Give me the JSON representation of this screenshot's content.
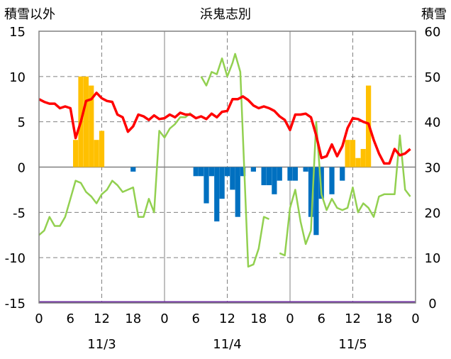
{
  "chart_data": {
    "type": "bar+line",
    "title": "浜鬼志別",
    "left_axis_title": "積雪以外",
    "right_axis_title": "積雪",
    "left_ylim": [
      -15,
      15
    ],
    "left_yticks": [
      15,
      10,
      5,
      0,
      -5,
      -10,
      -15
    ],
    "right_ylim": [
      0,
      60
    ],
    "right_yticks": [
      60,
      50,
      40,
      30,
      20,
      10,
      0
    ],
    "x_range_hours": [
      0,
      72
    ],
    "x_tick_labels": [
      "0",
      "6",
      "12",
      "18",
      "0",
      "6",
      "12",
      "18",
      "0",
      "6",
      "12",
      "18",
      "0"
    ],
    "date_labels": [
      "11/3",
      "11/4",
      "11/5"
    ],
    "grid": true,
    "colors": {
      "temperature": "#ff0000",
      "snow_depth": "#92d050",
      "snowfall": "#ffc000",
      "precipitation": "#0070c0",
      "baseline": "#7030a0"
    },
    "snowfall_bars": [
      [
        7,
        3
      ],
      [
        8,
        10
      ],
      [
        9,
        10
      ],
      [
        10,
        9
      ],
      [
        11,
        3
      ],
      [
        12,
        4
      ],
      [
        59,
        3
      ],
      [
        60,
        3
      ],
      [
        61,
        1
      ],
      [
        62,
        2
      ],
      [
        63,
        9
      ]
    ],
    "precip_bars": [
      [
        18,
        -0.5
      ],
      [
        30,
        -1
      ],
      [
        31,
        -1
      ],
      [
        32,
        -4
      ],
      [
        33,
        -1
      ],
      [
        34,
        -6
      ],
      [
        35,
        -3.5
      ],
      [
        36,
        -1
      ],
      [
        37,
        -2.5
      ],
      [
        38,
        -5.5
      ],
      [
        39,
        -1
      ],
      [
        41,
        -0.5
      ],
      [
        43,
        -2
      ],
      [
        44,
        -2
      ],
      [
        45,
        -3
      ],
      [
        46,
        -1.5
      ],
      [
        48,
        -1.5
      ],
      [
        49,
        -1.5
      ],
      [
        51,
        -0.5
      ],
      [
        52,
        -5.5
      ],
      [
        53,
        -7.5
      ],
      [
        54,
        -3.5
      ],
      [
        56,
        -3
      ],
      [
        58,
        -1.5
      ]
    ],
    "temperature": [
      [
        0,
        7.5
      ],
      [
        1,
        7.2
      ],
      [
        2,
        7
      ],
      [
        3,
        7
      ],
      [
        4,
        6.5
      ],
      [
        5,
        6.7
      ],
      [
        6,
        6.5
      ],
      [
        7,
        3.2
      ],
      [
        8,
        5
      ],
      [
        9,
        7.3
      ],
      [
        10,
        7.5
      ],
      [
        11,
        8.2
      ],
      [
        12,
        7.6
      ],
      [
        13,
        7.3
      ],
      [
        14,
        7.2
      ],
      [
        15,
        5.8
      ],
      [
        16,
        5.5
      ],
      [
        17,
        3.9
      ],
      [
        18,
        4.5
      ],
      [
        19,
        5.8
      ],
      [
        20,
        5.6
      ],
      [
        21,
        5.2
      ],
      [
        22,
        5.7
      ],
      [
        23,
        5.3
      ],
      [
        24,
        5.4
      ],
      [
        25,
        5.8
      ],
      [
        26,
        5.5
      ],
      [
        27,
        6
      ],
      [
        28,
        5.8
      ],
      [
        29,
        5.8
      ],
      [
        30,
        5.4
      ],
      [
        31,
        5.6
      ],
      [
        32,
        5.3
      ],
      [
        33,
        5.9
      ],
      [
        34,
        5.5
      ],
      [
        35,
        6.1
      ],
      [
        36,
        6.2
      ],
      [
        37,
        7.5
      ],
      [
        38,
        7.5
      ],
      [
        39,
        7.8
      ],
      [
        40,
        7.4
      ],
      [
        41,
        6.8
      ],
      [
        42,
        6.5
      ],
      [
        43,
        6.7
      ],
      [
        44,
        6.5
      ],
      [
        45,
        6.2
      ],
      [
        46,
        5.6
      ],
      [
        47,
        5.2
      ],
      [
        48,
        4.1
      ],
      [
        49,
        5.8
      ],
      [
        50,
        5.8
      ],
      [
        51,
        5.9
      ],
      [
        52,
        5.5
      ],
      [
        53,
        3.5
      ],
      [
        54,
        1
      ],
      [
        55,
        1.2
      ],
      [
        56,
        2.5
      ],
      [
        57,
        1.2
      ],
      [
        58,
        2.3
      ],
      [
        59,
        4.3
      ],
      [
        60,
        5.4
      ],
      [
        61,
        5.3
      ],
      [
        62,
        5
      ],
      [
        63,
        4.8
      ],
      [
        64,
        3
      ],
      [
        65,
        1.5
      ],
      [
        66,
        0.4
      ],
      [
        67,
        0.4
      ],
      [
        68,
        2
      ],
      [
        69,
        1.3
      ],
      [
        70,
        1.5
      ],
      [
        71,
        2
      ]
    ],
    "snow_depth_segments": [
      [
        [
          0,
          15
        ],
        [
          1,
          16
        ],
        [
          2,
          19
        ],
        [
          3,
          17
        ],
        [
          4,
          17
        ],
        [
          5,
          19
        ],
        [
          6,
          23
        ],
        [
          7,
          27
        ],
        [
          8,
          26.5
        ],
        [
          9,
          24.5
        ],
        [
          10,
          23.5
        ],
        [
          11,
          22
        ],
        [
          12,
          24
        ],
        [
          13,
          25
        ],
        [
          14,
          27
        ],
        [
          15,
          26
        ],
        [
          16,
          24.5
        ],
        [
          17,
          25
        ],
        [
          18,
          25.5
        ],
        [
          19,
          19
        ],
        [
          20,
          19
        ],
        [
          21,
          23
        ],
        [
          22,
          20
        ],
        [
          23,
          38
        ],
        [
          24,
          36.5
        ],
        [
          25,
          38.5
        ],
        [
          26,
          39.5
        ],
        [
          27,
          41
        ],
        [
          28,
          41
        ],
        [
          29,
          42
        ]
      ],
      [
        [
          31,
          50
        ],
        [
          32,
          48
        ],
        [
          33,
          51
        ],
        [
          34,
          50.5
        ],
        [
          35,
          54
        ],
        [
          36,
          50
        ],
        [
          37,
          53
        ],
        [
          37.5,
          55
        ],
        [
          38.5,
          51
        ],
        [
          40,
          8
        ],
        [
          41,
          8.5
        ],
        [
          42,
          12
        ],
        [
          43,
          19
        ],
        [
          44,
          18.5
        ]
      ],
      [
        [
          46,
          11
        ],
        [
          47,
          10.5
        ],
        [
          48,
          21
        ],
        [
          49,
          25
        ],
        [
          50,
          18
        ],
        [
          51,
          13
        ],
        [
          52,
          16
        ],
        [
          53,
          40
        ],
        [
          54,
          24
        ],
        [
          55,
          20.5
        ],
        [
          56,
          23
        ],
        [
          57,
          21
        ],
        [
          58,
          20.5
        ],
        [
          59,
          21
        ],
        [
          60,
          25.5
        ],
        [
          61,
          20
        ],
        [
          62,
          22
        ],
        [
          63,
          21
        ],
        [
          64,
          19
        ],
        [
          65,
          23.5
        ],
        [
          66,
          24
        ],
        [
          67,
          24
        ],
        [
          68,
          24
        ],
        [
          69,
          37
        ],
        [
          70,
          25
        ],
        [
          71,
          23.5
        ]
      ]
    ]
  }
}
